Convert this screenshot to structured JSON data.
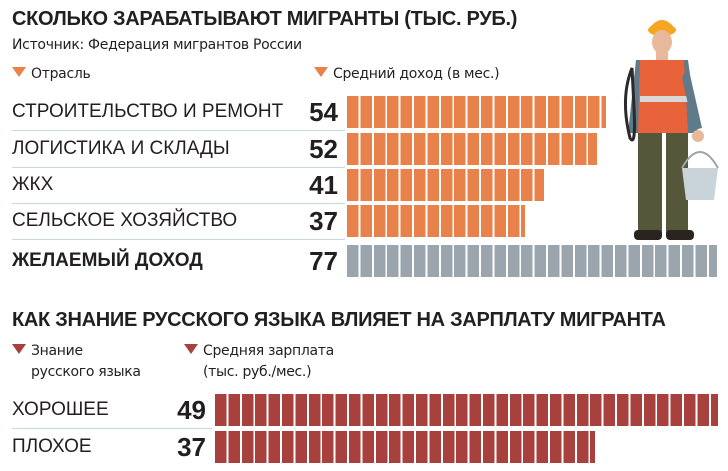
{
  "top": {
    "title": "СКОЛЬКО ЗАРАБАТЫВАЮТ МИГРАНТЫ (ТЫС. РУБ.)",
    "source": "Источник: Федерация мигрантов России",
    "legend_category": "Отрасль",
    "legend_value": "Средний доход (в мес.)"
  },
  "bottom": {
    "title": "КАК ЗНАНИЕ РУССКОГО ЯЗЫКА ВЛИЯЕТ НА ЗАРПЛАТУ МИГРАНТА",
    "legend_category_1": "Знание",
    "legend_category_2": "русского языка",
    "legend_value_1": "Средняя зарплата",
    "legend_value_2": "(тыс. руб./мес.)"
  },
  "chart_data": [
    {
      "type": "bar",
      "orientation": "horizontal",
      "title": "СКОЛЬКО ЗАРАБАТЫВАЮТ МИГРАНТЫ (ТЫС. РУБ.)",
      "categories": [
        "СТРОИТЕЛЬСТВО И РЕМОНТ",
        "ЛОГИСТИКА И СКЛАДЫ",
        "ЖКХ",
        "СЕЛЬСКОЕ ХОЗЯЙСТВО",
        "ЖЕЛАЕМЫЙ ДОХОД"
      ],
      "values": [
        54,
        52,
        41,
        37,
        77
      ],
      "display_values": [
        "54",
        "52",
        "41",
        "37",
        "77"
      ],
      "colors": [
        "#e8814a",
        "#e8814a",
        "#e8814a",
        "#e8814a",
        "#9aa5ad"
      ],
      "xlim": [
        0,
        77
      ]
    },
    {
      "type": "bar",
      "orientation": "horizontal",
      "title": "КАК ЗНАНИЕ РУССКОГО ЯЗЫКА ВЛИЯЕТ НА ЗАРПЛАТУ МИГРАНТА",
      "categories": [
        "ХОРОШЕЕ",
        "ПЛОХОЕ"
      ],
      "values": [
        49,
        37
      ],
      "display_values": [
        "49",
        "37"
      ],
      "colors": [
        "#a8403e",
        "#a8403e"
      ],
      "xlim": [
        0,
        49
      ]
    }
  ]
}
